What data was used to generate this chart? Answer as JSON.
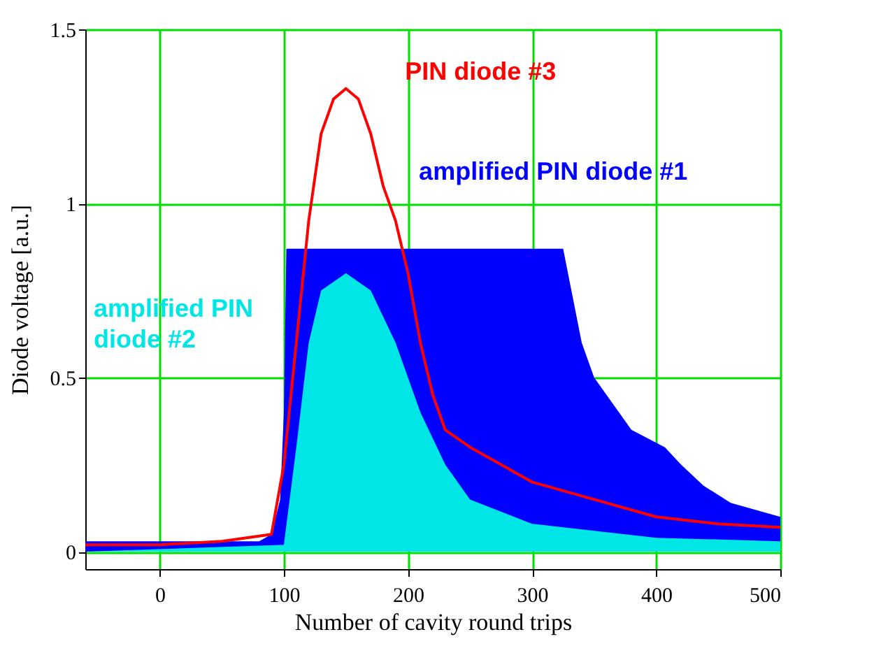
{
  "chart_data": {
    "type": "area",
    "xlabel": "Number of cavity round trips",
    "ylabel": "Diode voltage [a.u.]",
    "xlim": [
      -60,
      500
    ],
    "ylim": [
      -0.05,
      1.5
    ],
    "xticks": [
      0,
      100,
      200,
      300,
      400,
      500
    ],
    "yticks": [
      {
        "value": 0,
        "label": "0"
      },
      0.5,
      {
        "value": 1,
        "label": "1"
      },
      1.5
    ],
    "grid": true,
    "series": [
      {
        "color": "#0000ff",
        "x": [
          -60,
          80,
          90,
          97,
          100,
          102,
          325,
          340,
          350,
          380,
          407,
          420,
          438,
          460,
          500
        ],
        "values": [
          0.03,
          0.03,
          0.05,
          0.15,
          0.4,
          0.87,
          0.87,
          0.6,
          0.5,
          0.35,
          0.3,
          0.25,
          0.19,
          0.14,
          0.1
        ]
      },
      {
        "color": "#00e5e5",
        "x": [
          -60,
          100,
          110,
          120,
          130,
          150,
          170,
          190,
          210,
          230,
          250,
          300,
          400,
          500
        ],
        "values": [
          0.0,
          0.02,
          0.3,
          0.6,
          0.75,
          0.8,
          0.75,
          0.6,
          0.4,
          0.25,
          0.15,
          0.08,
          0.04,
          0.03
        ]
      },
      {
        "type": "line",
        "color": "#ff0000",
        "x": [
          -60,
          0,
          50,
          90,
          100,
          110,
          120,
          130,
          140,
          150,
          160,
          170,
          180,
          190,
          200,
          210,
          220,
          230,
          250,
          270,
          300,
          350,
          400,
          450,
          500
        ],
        "values": [
          0.02,
          0.02,
          0.03,
          0.05,
          0.25,
          0.6,
          0.95,
          1.2,
          1.3,
          1.33,
          1.3,
          1.2,
          1.05,
          0.95,
          0.8,
          0.6,
          0.45,
          0.35,
          0.3,
          0.26,
          0.2,
          0.15,
          0.1,
          0.08,
          0.07
        ]
      }
    ],
    "annotations": [
      "amplified PIN diode #1",
      "amplified PIN diode #2",
      "PIN diode #3"
    ]
  }
}
